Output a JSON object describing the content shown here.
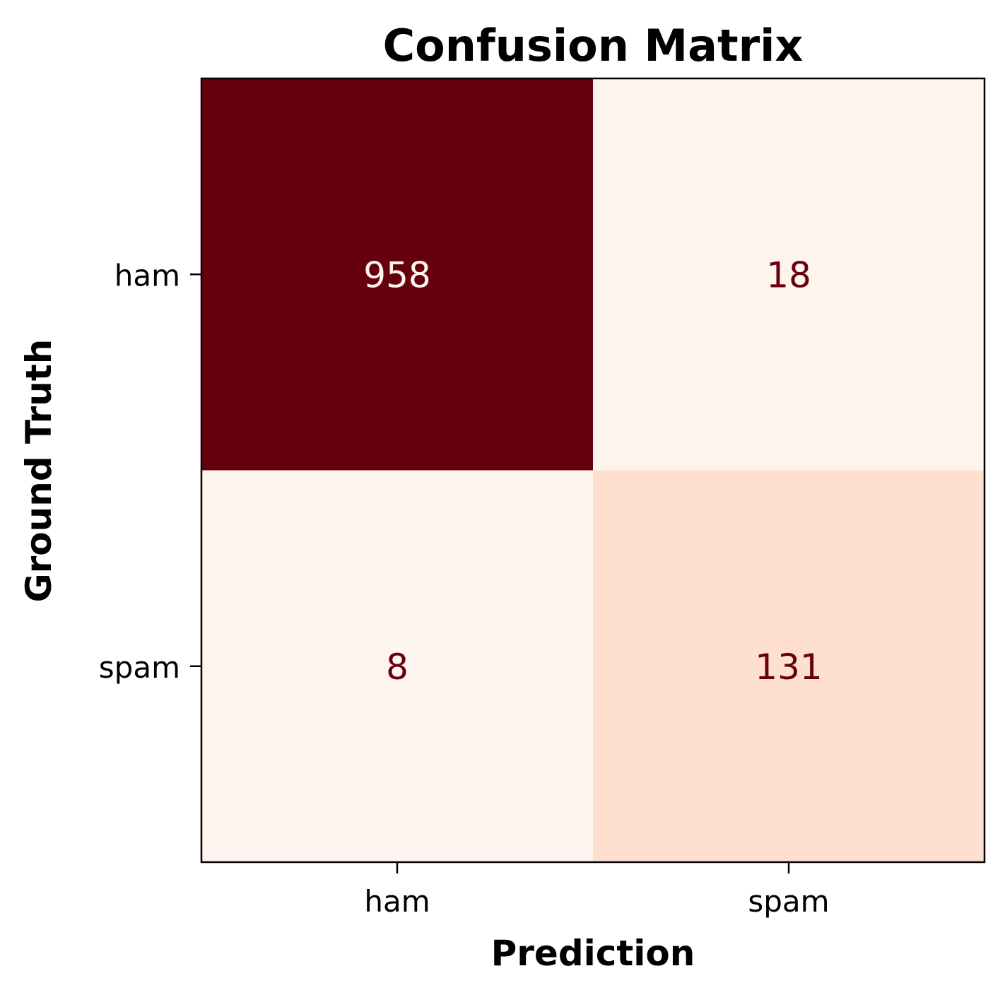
{
  "chart_data": {
    "type": "heatmap",
    "title": "Confusion Matrix",
    "xlabel": "Prediction",
    "ylabel": "Ground Truth",
    "x_categories": [
      "ham",
      "spam"
    ],
    "y_categories": [
      "ham",
      "spam"
    ],
    "values": [
      [
        958,
        18
      ],
      [
        8,
        131
      ]
    ],
    "colormap": "Reds",
    "colors": {
      "high": "#67000d",
      "low": "#fff5f0",
      "text_on_dark": "#fff5f0",
      "text_on_light": "#67000d"
    },
    "grid": false,
    "legend": "none"
  }
}
